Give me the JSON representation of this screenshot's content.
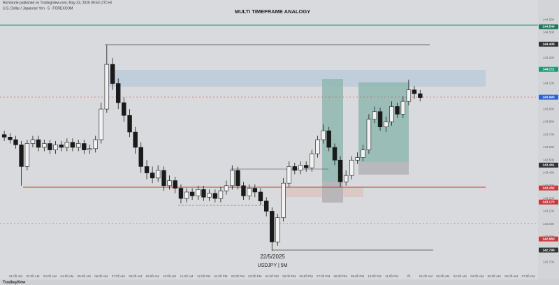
{
  "header": {
    "published": "Richmorie published on TradingView.com, May 23, 2025 09:53 UTC+8",
    "symbol": "U.S. Dollar / Japanese Yen · 5 · FOREXCOM",
    "brand": "TradingView"
  },
  "chart_data": {
    "type": "candlestick",
    "title": "MULTI TIMEFRAME ANALOGY",
    "annotations": [
      "22/5/2025",
      "USDJPY | 5M"
    ],
    "x": [
      0.33,
      0.67,
      1,
      1.33,
      1.67,
      2,
      2.33,
      2.67,
      3,
      3.33,
      3.67,
      4,
      4.33,
      4.67,
      5,
      5.33,
      5.67,
      6,
      6.33,
      6.67,
      7,
      7.33,
      7.67,
      8,
      8.33,
      8.67,
      9,
      9.33,
      9.67,
      10,
      10.33,
      10.67,
      11,
      11.33,
      11.67,
      12,
      12.33,
      12.67,
      13,
      13.33,
      13.67,
      14,
      14.33,
      14.67,
      15,
      15.33,
      15.67,
      16,
      16.33,
      16.67,
      17,
      17.33,
      17.67,
      18,
      18.33,
      18.67,
      19,
      19.33,
      19.67,
      20,
      20.33,
      20.67,
      21,
      21.33,
      21.67,
      22,
      22.33,
      22.67,
      23,
      23.33,
      23.67,
      24,
      24.33,
      24.67
    ],
    "open": [
      143.7,
      143.68,
      143.66,
      143.62,
      143.45,
      143.63,
      143.66,
      143.6,
      143.63,
      143.58,
      143.62,
      143.6,
      143.64,
      143.6,
      143.63,
      143.58,
      143.59,
      143.66,
      143.9,
      144.25,
      144.1,
      143.95,
      143.85,
      143.72,
      143.6,
      143.45,
      143.4,
      143.36,
      143.42,
      143.3,
      143.34,
      143.28,
      143.2,
      143.25,
      143.22,
      143.27,
      143.21,
      143.24,
      143.2,
      143.26,
      143.3,
      143.42,
      143.3,
      143.22,
      143.28,
      143.25,
      143.18,
      143.1,
      142.86,
      143.05,
      143.32,
      143.45,
      143.42,
      143.46,
      143.44,
      143.55,
      143.66,
      143.73,
      143.6,
      143.5,
      143.33,
      143.38,
      143.5,
      143.52,
      143.58,
      143.82,
      143.88,
      143.76,
      143.8,
      143.92,
      143.86,
      143.96,
      144.05,
      144.02
    ],
    "high": [
      143.73,
      143.71,
      143.69,
      143.65,
      143.66,
      143.69,
      143.69,
      143.66,
      143.66,
      143.65,
      143.65,
      143.67,
      143.67,
      143.66,
      143.66,
      143.62,
      143.69,
      143.95,
      144.4,
      144.3,
      144.14,
      143.99,
      143.9,
      143.76,
      143.64,
      143.5,
      143.45,
      143.46,
      143.45,
      143.38,
      143.37,
      143.31,
      143.28,
      143.28,
      143.3,
      143.3,
      143.27,
      143.27,
      143.29,
      143.34,
      143.46,
      143.45,
      143.33,
      143.31,
      143.31,
      143.28,
      143.21,
      143.13,
      143.08,
      143.36,
      143.49,
      143.48,
      143.49,
      143.49,
      143.58,
      143.69,
      143.78,
      143.76,
      143.63,
      143.53,
      143.42,
      143.53,
      143.56,
      143.62,
      143.86,
      143.92,
      143.91,
      143.84,
      143.96,
      143.95,
      144.0,
      144.13,
      144.08,
      144.05
    ],
    "low": [
      143.65,
      143.63,
      143.59,
      143.3,
      143.42,
      143.6,
      143.57,
      143.57,
      143.55,
      143.55,
      143.57,
      143.57,
      143.57,
      143.57,
      143.55,
      143.55,
      143.56,
      143.63,
      143.87,
      144.05,
      143.9,
      143.8,
      143.68,
      143.55,
      143.4,
      143.35,
      143.32,
      143.33,
      143.26,
      143.27,
      143.24,
      143.16,
      143.17,
      143.19,
      143.19,
      143.18,
      143.18,
      143.17,
      143.17,
      143.23,
      143.27,
      143.27,
      143.19,
      143.19,
      143.21,
      143.15,
      143.06,
      142.79,
      142.83,
      143.02,
      143.29,
      143.39,
      143.39,
      143.41,
      143.41,
      143.52,
      143.63,
      143.57,
      143.46,
      143.29,
      143.3,
      143.35,
      143.47,
      143.49,
      143.55,
      143.79,
      143.73,
      143.72,
      143.77,
      143.83,
      143.83,
      143.93,
      143.98,
      143.96
    ],
    "close": [
      143.68,
      143.66,
      143.62,
      143.45,
      143.63,
      143.66,
      143.6,
      143.63,
      143.58,
      143.62,
      143.6,
      143.64,
      143.6,
      143.63,
      143.58,
      143.59,
      143.66,
      143.9,
      144.25,
      144.1,
      143.95,
      143.85,
      143.72,
      143.6,
      143.45,
      143.4,
      143.36,
      143.42,
      143.3,
      143.34,
      143.28,
      143.2,
      143.25,
      143.22,
      143.27,
      143.21,
      143.24,
      143.2,
      143.26,
      143.3,
      143.42,
      143.3,
      143.22,
      143.28,
      143.25,
      143.18,
      143.1,
      142.86,
      143.05,
      143.32,
      143.45,
      143.42,
      143.46,
      143.44,
      143.55,
      143.66,
      143.73,
      143.6,
      143.5,
      143.33,
      143.38,
      143.5,
      143.52,
      143.58,
      143.82,
      143.88,
      143.76,
      143.8,
      143.92,
      143.86,
      143.96,
      144.05,
      144.02,
      143.99
    ],
    "up_color": "#f2f2f2",
    "down_color": "#1a1a1a",
    "xlim": [
      0.08,
      31.57
    ],
    "ylim": [
      142.61,
      144.71
    ],
    "xticks": [
      {
        "value": 1,
        "label": "01:00 AM"
      },
      {
        "value": 2,
        "label": "02:00 AM"
      },
      {
        "value": 3,
        "label": "03:00 AM"
      },
      {
        "value": 4,
        "label": "04:00 AM"
      },
      {
        "value": 5,
        "label": "05:00 AM"
      },
      {
        "value": 6,
        "label": "06:00 AM"
      },
      {
        "value": 7,
        "label": "07:00 AM"
      },
      {
        "value": 8,
        "label": "08:00 AM"
      },
      {
        "value": 9,
        "label": "09:00 AM"
      },
      {
        "value": 10,
        "label": "10:00 AM"
      },
      {
        "value": 11,
        "label": "11:00 AM"
      },
      {
        "value": 12,
        "label": "12:00 PM"
      },
      {
        "value": 13,
        "label": "01:00 PM"
      },
      {
        "value": 14,
        "label": "02:00 PM"
      },
      {
        "value": 15,
        "label": "03:00 PM"
      },
      {
        "value": 16,
        "label": "04:00 PM"
      },
      {
        "value": 17,
        "label": "05:00 PM"
      },
      {
        "value": 18,
        "label": "06:00 PM"
      },
      {
        "value": 19,
        "label": "07:00 PM"
      },
      {
        "value": 20,
        "label": "08:00 PM"
      },
      {
        "value": 21,
        "label": "09:00 PM"
      },
      {
        "value": 22,
        "label": "10:00 PM"
      },
      {
        "value": 23,
        "label": "11:00 PM"
      },
      {
        "value": 24,
        "label": "23"
      },
      {
        "value": 25,
        "label": "01:00 AM"
      },
      {
        "value": 26,
        "label": "02:00 AM"
      },
      {
        "value": 27,
        "label": "03:00 AM"
      },
      {
        "value": 28,
        "label": "04:00 AM"
      },
      {
        "value": 29,
        "label": "05:00 AM"
      },
      {
        "value": 30,
        "label": "06:00 AM"
      },
      {
        "value": 31,
        "label": "07:00 AM"
      }
    ],
    "yticks": [
      {
        "value": 142.7,
        "label": "142.700"
      },
      {
        "value": 142.8,
        "label": "142.800"
      },
      {
        "value": 142.9,
        "label": "142.900"
      },
      {
        "value": 143,
        "label": "143.000"
      },
      {
        "value": 143.1,
        "label": "143.100"
      },
      {
        "value": 143.2,
        "label": "143.200"
      },
      {
        "value": 143.3,
        "label": "143.300"
      },
      {
        "value": 143.4,
        "label": "143.400"
      },
      {
        "value": 143.5,
        "label": "143.500"
      },
      {
        "value": 143.6,
        "label": "143.600"
      },
      {
        "value": 143.7,
        "label": "143.700"
      },
      {
        "value": 143.8,
        "label": "143.800"
      },
      {
        "value": 143.9,
        "label": "143.900"
      },
      {
        "value": 144,
        "label": "144.000"
      },
      {
        "value": 144.1,
        "label": "144.100"
      },
      {
        "value": 144.2,
        "label": "144.200"
      },
      {
        "value": 144.3,
        "label": "144.300"
      },
      {
        "value": 144.4,
        "label": "144.400"
      },
      {
        "value": 144.5,
        "label": "144.500"
      },
      {
        "value": 144.6,
        "label": "144.600"
      }
    ],
    "price_markers": [
      {
        "value": 144.544,
        "label": "144.544",
        "color": "#1f7a5c"
      },
      {
        "value": 144.408,
        "label": "144.408",
        "color": "#333333"
      },
      {
        "value": 144.211,
        "label": "144.211",
        "color": "#1f9a74"
      },
      {
        "value": 143.993,
        "label": "143.993",
        "color": "#2a62d8"
      },
      {
        "value": 143.461,
        "label": "143.461",
        "color": "#333333"
      },
      {
        "value": 143.282,
        "label": "143.282",
        "color": "#c8393c"
      },
      {
        "value": 143.172,
        "label": "143.172",
        "color": "#c8393c"
      },
      {
        "value": 142.883,
        "label": "142.883",
        "color": "#c8393c"
      },
      {
        "value": 142.796,
        "label": "142.796",
        "color": "#333333"
      }
    ],
    "grid": false
  }
}
